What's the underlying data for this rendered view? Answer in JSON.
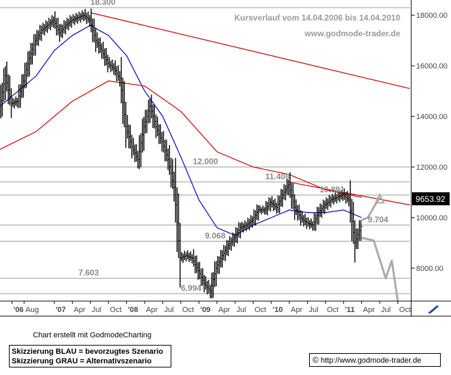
{
  "chart_data": {
    "type": "line",
    "style": "ohlc-bars",
    "title": "Kursverlauf vom 14.04.2006 bis 14.04.2010",
    "subtitle": "www.godmode-trader.de",
    "y_axis": {
      "position": "right",
      "ticks": [
        "18000.00",
        "16000.00",
        "14000.00",
        "12000.00",
        "10000.00",
        "8000.00"
      ],
      "tick_values": [
        18000,
        16000,
        14000,
        12000,
        10000,
        8000
      ],
      "range": [
        6700,
        18600
      ],
      "current_price": 9653.92,
      "current_price_label": "9653.92"
    },
    "x_axis": {
      "range": [
        "2006-04",
        "2011-12"
      ],
      "ticks": [
        {
          "label": "'06",
          "date": "2006-06"
        },
        {
          "label": "Aug",
          "date": "2006-08"
        },
        {
          "label": "'07",
          "date": "2007-01"
        },
        {
          "label": "Apr",
          "date": "2007-04"
        },
        {
          "label": "Jul",
          "date": "2007-07"
        },
        {
          "label": "Oct",
          "date": "2007-10"
        },
        {
          "label": "'08",
          "date": "2008-01"
        },
        {
          "label": "Apr",
          "date": "2008-04"
        },
        {
          "label": "Jul",
          "date": "2008-07"
        },
        {
          "label": "Oct",
          "date": "2008-10"
        },
        {
          "label": "'09",
          "date": "2009-01"
        },
        {
          "label": "Apr",
          "date": "2009-04"
        },
        {
          "label": "Jul",
          "date": "2009-07"
        },
        {
          "label": "Oct",
          "date": "2009-10"
        },
        {
          "label": "'10",
          "date": "2010-01"
        },
        {
          "label": "Apr",
          "date": "2010-04"
        },
        {
          "label": "Jul",
          "date": "2010-07"
        },
        {
          "label": "Oct",
          "date": "2010-10"
        },
        {
          "label": "'11",
          "date": "2011-01"
        },
        {
          "label": "Apr",
          "date": "2011-04"
        },
        {
          "label": "Jul",
          "date": "2011-07"
        },
        {
          "label": "Oct",
          "date": "2011-10"
        }
      ]
    },
    "levels": [
      {
        "label": "18.300",
        "value": 18300
      },
      {
        "label": "12.000",
        "value": 12000
      },
      {
        "label": "11.408",
        "value": 11408
      },
      {
        "label": "10.891",
        "value": 10891
      },
      {
        "label": "9.704",
        "value": 9704
      },
      {
        "label": "9.068",
        "value": 9068
      },
      {
        "label": "7.603",
        "value": 7603
      },
      {
        "label": "6.994",
        "value": 6994
      }
    ],
    "price_series": {
      "color": "#000000",
      "points": [
        [
          "2006-04",
          14300
        ],
        [
          "2006-05",
          15600
        ],
        [
          "2006-06",
          14500
        ],
        [
          "2006-07",
          14600
        ],
        [
          "2006-08",
          15400
        ],
        [
          "2006-09",
          16300
        ],
        [
          "2006-10",
          17000
        ],
        [
          "2006-11",
          17400
        ],
        [
          "2006-12",
          17600
        ],
        [
          "2007-01",
          17800
        ],
        [
          "2007-02",
          17300
        ],
        [
          "2007-03",
          17600
        ],
        [
          "2007-04",
          17800
        ],
        [
          "2007-05",
          17900
        ],
        [
          "2007-06",
          18000
        ],
        [
          "2007-07",
          17800
        ],
        [
          "2007-08",
          17000
        ],
        [
          "2007-09",
          16600
        ],
        [
          "2007-10",
          16100
        ],
        [
          "2007-11",
          15900
        ],
        [
          "2007-12",
          15500
        ],
        [
          "2008-01",
          13600
        ],
        [
          "2008-02",
          12800
        ],
        [
          "2008-03",
          12300
        ],
        [
          "2008-04",
          13600
        ],
        [
          "2008-05",
          14400
        ],
        [
          "2008-06",
          13600
        ],
        [
          "2008-07",
          13000
        ],
        [
          "2008-08",
          12300
        ],
        [
          "2008-09",
          11200
        ],
        [
          "2008-10",
          8400
        ],
        [
          "2008-11",
          8500
        ],
        [
          "2008-12",
          8400
        ],
        [
          "2009-01",
          7900
        ],
        [
          "2009-02",
          7400
        ],
        [
          "2009-03",
          7100
        ],
        [
          "2009-04",
          8000
        ],
        [
          "2009-05",
          8500
        ],
        [
          "2009-06",
          8900
        ],
        [
          "2009-07",
          9200
        ],
        [
          "2009-08",
          9600
        ],
        [
          "2009-09",
          9700
        ],
        [
          "2009-10",
          9900
        ],
        [
          "2009-11",
          10300
        ],
        [
          "2009-12",
          10300
        ],
        [
          "2010-01",
          10600
        ],
        [
          "2010-02",
          10400
        ],
        [
          "2010-03",
          10900
        ],
        [
          "2010-04",
          11300
        ],
        [
          "2010-05",
          10400
        ],
        [
          "2010-06",
          10000
        ],
        [
          "2010-07",
          9800
        ],
        [
          "2010-08",
          9700
        ],
        [
          "2010-09",
          10200
        ],
        [
          "2010-10",
          10500
        ],
        [
          "2010-11",
          10700
        ],
        [
          "2010-12",
          10800
        ],
        [
          "2011-01",
          10900
        ],
        [
          "2011-02",
          10700
        ],
        [
          "2011-03",
          9000
        ],
        [
          "2011-04",
          9654
        ]
      ]
    },
    "moving_averages": [
      {
        "color": "#0000cc",
        "points": [
          [
            "2006-04",
            14400
          ],
          [
            "2006-07",
            15000
          ],
          [
            "2006-10",
            15600
          ],
          [
            "2007-01",
            16600
          ],
          [
            "2007-04",
            17200
          ],
          [
            "2007-07",
            17600
          ],
          [
            "2007-10",
            17200
          ],
          [
            "2008-01",
            16400
          ],
          [
            "2008-04",
            15000
          ],
          [
            "2008-07",
            14000
          ],
          [
            "2008-10",
            12400
          ],
          [
            "2009-01",
            10700
          ],
          [
            "2009-04",
            9600
          ],
          [
            "2009-07",
            9300
          ],
          [
            "2009-10",
            9700
          ],
          [
            "2010-01",
            10000
          ],
          [
            "2010-04",
            10300
          ],
          [
            "2010-07",
            10200
          ],
          [
            "2010-10",
            10200
          ],
          [
            "2011-01",
            10300
          ],
          [
            "2011-04",
            10000
          ]
        ]
      },
      {
        "color": "#cc0000",
        "points": [
          [
            "2006-04",
            12700
          ],
          [
            "2006-10",
            13400
          ],
          [
            "2007-04",
            14600
          ],
          [
            "2007-10",
            15400
          ],
          [
            "2008-04",
            15200
          ],
          [
            "2008-10",
            14200
          ],
          [
            "2009-04",
            12600
          ],
          [
            "2009-10",
            12000
          ],
          [
            "2010-04",
            11700
          ],
          [
            "2010-10",
            11100
          ],
          [
            "2011-04",
            10800
          ]
        ]
      }
    ],
    "trendlines": [
      {
        "color": "#cc0000",
        "from": [
          "2007-07",
          18100
        ],
        "to": [
          "2011-12",
          15100
        ]
      },
      {
        "color": "#cc0000",
        "from": [
          "2010-04",
          11400
        ],
        "to": [
          "2011-12",
          10500
        ]
      }
    ],
    "scenarios": [
      {
        "color": "#aaaaaa",
        "points": [
          [
            "2011-04",
            9900
          ],
          [
            "2011-05",
            10000
          ],
          [
            "2011-07",
            10800
          ]
        ]
      },
      {
        "color": "#aaaaaa",
        "points": [
          [
            "2011-04",
            9200
          ],
          [
            "2011-06",
            9100
          ],
          [
            "2011-08",
            7600
          ],
          [
            "2011-09",
            8300
          ],
          [
            "2011-10",
            6700
          ]
        ]
      }
    ],
    "grid": false
  },
  "footer": {
    "credit": "Chart erstellt mit GodmodeCharting",
    "legend_line_1": "Skizzierung BLAU = bevorzugtes Szenario",
    "legend_line_2": "Skizzierung GRAU = Alternativszenario",
    "copyright_symbol": "©",
    "url": "http://www.godmode-trader.de",
    "corner_icon": "pen-arrow-icon"
  }
}
